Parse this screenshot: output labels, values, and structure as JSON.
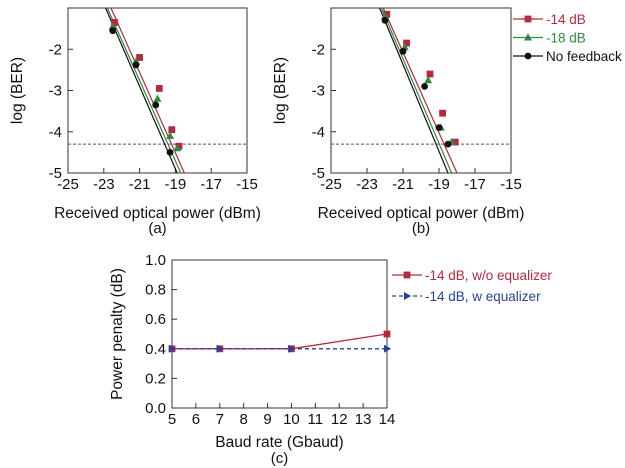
{
  "chart_data": [
    {
      "type": "line",
      "panel_label": "(a)",
      "xlabel": "Received optical power (dBm)",
      "ylabel": "log (BER)",
      "xlim": [
        -25,
        -15
      ],
      "ylim": [
        -5,
        -1
      ],
      "xticks": [
        -25,
        -23,
        -21,
        -19,
        -17,
        -15
      ],
      "yticks": [
        -2,
        -3,
        -4,
        -5
      ],
      "threshold": -4.3,
      "grid": false,
      "legend": null,
      "series": [
        {
          "name": "-14 dB",
          "color": "#b5283e",
          "marker": "square",
          "x": [
            -22.4,
            -21.0,
            -19.9,
            -19.2,
            -18.8
          ],
          "y": [
            -1.35,
            -2.2,
            -2.95,
            -3.95,
            -4.35
          ],
          "fit": [
            [
              -22.6,
              -1.0
            ],
            [
              -18.5,
              -5.0
            ]
          ]
        },
        {
          "name": "-18 dB",
          "color": "#2e8b3e",
          "marker": "triangle",
          "x": [
            -22.5,
            -21.2,
            -20.0,
            -19.3,
            -18.9
          ],
          "y": [
            -1.45,
            -2.3,
            -3.2,
            -4.1,
            -4.4
          ],
          "fit": [
            [
              -22.8,
              -1.0
            ],
            [
              -18.7,
              -5.0
            ]
          ]
        },
        {
          "name": "No feedback",
          "color": "#111111",
          "marker": "circle",
          "x": [
            -22.5,
            -21.2,
            -20.1,
            -19.3
          ],
          "y": [
            -1.55,
            -2.38,
            -3.35,
            -4.5
          ],
          "fit": [
            [
              -22.9,
              -1.0
            ],
            [
              -18.9,
              -5.0
            ]
          ]
        }
      ]
    },
    {
      "type": "line",
      "panel_label": "(b)",
      "xlabel": "Received optical power (dBm)",
      "ylabel": "log (BER)",
      "xlim": [
        -25,
        -15
      ],
      "ylim": [
        -5,
        -1
      ],
      "xticks": [
        -25,
        -23,
        -21,
        -19,
        -17,
        -15
      ],
      "yticks": [
        -2,
        -3,
        -4,
        -5
      ],
      "threshold": -4.3,
      "grid": false,
      "legend": {
        "placement": "right",
        "entries": [
          {
            "label": "-14 dB",
            "color": "#b5283e",
            "marker": "square"
          },
          {
            "label": "-18 dB",
            "color": "#2e8b3e",
            "marker": "triangle"
          },
          {
            "label": "No feedback",
            "color": "#111111",
            "marker": "circle"
          }
        ]
      },
      "series": [
        {
          "name": "-14 dB",
          "color": "#b5283e",
          "marker": "square",
          "x": [
            -21.9,
            -20.8,
            -19.5,
            -18.8,
            -18.1
          ],
          "y": [
            -1.15,
            -1.85,
            -2.6,
            -3.55,
            -4.25
          ],
          "fit": [
            [
              -22.1,
              -1.0
            ],
            [
              -18.0,
              -5.0
            ]
          ]
        },
        {
          "name": "-18 dB",
          "color": "#2e8b3e",
          "marker": "triangle",
          "x": [
            -22.0,
            -20.9,
            -19.6,
            -18.9,
            -18.3
          ],
          "y": [
            -1.2,
            -1.95,
            -2.75,
            -3.9,
            -4.25
          ],
          "fit": [
            [
              -22.2,
              -1.0
            ],
            [
              -18.3,
              -5.0
            ]
          ]
        },
        {
          "name": "No feedback",
          "color": "#111111",
          "marker": "circle",
          "x": [
            -22.0,
            -21.0,
            -19.8,
            -19.0,
            -18.5
          ],
          "y": [
            -1.3,
            -2.05,
            -2.9,
            -3.9,
            -4.3
          ],
          "fit": [
            [
              -22.3,
              -1.0
            ],
            [
              -18.5,
              -5.0
            ]
          ]
        }
      ]
    },
    {
      "type": "line",
      "panel_label": "(c)",
      "xlabel": "Baud rate (Gbaud)",
      "ylabel": "Power penalty (dB)",
      "xlim": [
        5,
        14
      ],
      "ylim": [
        0,
        1
      ],
      "xticks": [
        5,
        6,
        7,
        8,
        9,
        10,
        11,
        12,
        13,
        14
      ],
      "yticks": [
        0.0,
        0.2,
        0.4,
        0.6,
        0.8,
        1.0
      ],
      "ytick_labels": [
        "0.0",
        "0.2",
        "0.4",
        "0.6",
        "0.8",
        "1.0"
      ],
      "grid": false,
      "legend": {
        "placement": "right",
        "entries": [
          {
            "label": "-14 dB, w/o equalizer",
            "color": "#b5283e",
            "marker": "square",
            "dash": "solid"
          },
          {
            "label": "-14 dB, w equalizer",
            "color": "#2a3f9e",
            "marker": "triangle-right",
            "dash": "dashed"
          }
        ]
      },
      "series": [
        {
          "name": "-14 dB, w/o equalizer",
          "color": "#b5283e",
          "marker": "square",
          "dash": "solid",
          "x": [
            5,
            7,
            10,
            14
          ],
          "y": [
            0.4,
            0.4,
            0.4,
            0.5
          ]
        },
        {
          "name": "-14 dB, w equalizer",
          "color": "#2a3f9e",
          "marker": "triangle-right",
          "dash": "dashed",
          "x": [
            5,
            7,
            10,
            14
          ],
          "y": [
            0.4,
            0.4,
            0.4,
            0.4
          ]
        }
      ]
    }
  ]
}
